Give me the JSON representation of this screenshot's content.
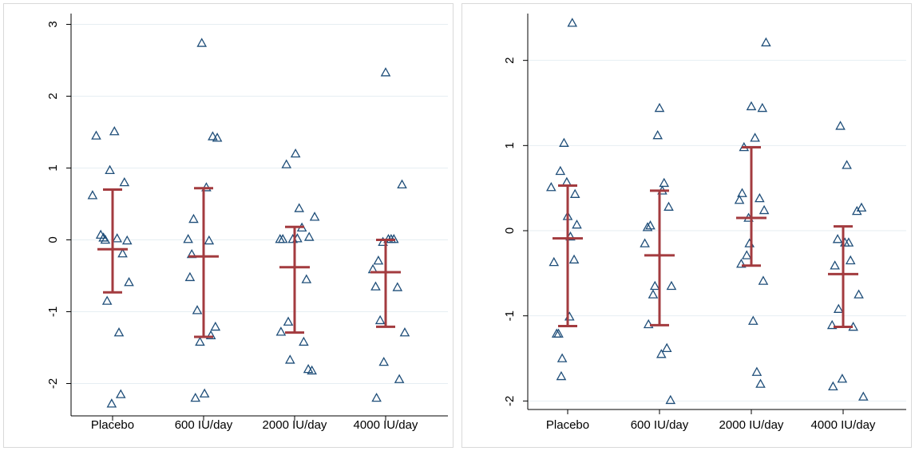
{
  "chart_data": [
    {
      "type": "scatter",
      "title": "",
      "xlabel": "",
      "ylabel": "",
      "categories": [
        "Placebo",
        "600 IU/day",
        "2000 IU/day",
        "4000 IU/day"
      ],
      "ylim": [
        -2.45,
        3.15
      ],
      "yticks": [
        -2,
        -1,
        0,
        1,
        2,
        3
      ],
      "grid": true,
      "marker": "hollow-triangle",
      "colors": {
        "points": "#1f4e79",
        "summary": "#a33b3f",
        "grid": "#e6eef2",
        "axis": "#000000"
      },
      "points": [
        {
          "group": 0,
          "x": 0.82,
          "y": 1.45
        },
        {
          "group": 0,
          "x": 1.02,
          "y": 1.51
        },
        {
          "group": 0,
          "x": 0.97,
          "y": 0.97
        },
        {
          "group": 0,
          "x": 1.13,
          "y": 0.8
        },
        {
          "group": 0,
          "x": 0.78,
          "y": 0.62
        },
        {
          "group": 0,
          "x": 0.87,
          "y": 0.07
        },
        {
          "group": 0,
          "x": 0.9,
          "y": 0.03
        },
        {
          "group": 0,
          "x": 0.92,
          "y": 0.0
        },
        {
          "group": 0,
          "x": 1.05,
          "y": 0.02
        },
        {
          "group": 0,
          "x": 1.16,
          "y": -0.01
        },
        {
          "group": 0,
          "x": 1.11,
          "y": -0.19
        },
        {
          "group": 0,
          "x": 1.18,
          "y": -0.59
        },
        {
          "group": 0,
          "x": 0.94,
          "y": -0.85
        },
        {
          "group": 0,
          "x": 1.07,
          "y": -1.29
        },
        {
          "group": 0,
          "x": 1.09,
          "y": -2.15
        },
        {
          "group": 0,
          "x": 0.99,
          "y": -2.28
        },
        {
          "group": 1,
          "x": 1.98,
          "y": 2.74
        },
        {
          "group": 1,
          "x": 2.1,
          "y": 1.44
        },
        {
          "group": 1,
          "x": 2.15,
          "y": 1.42
        },
        {
          "group": 1,
          "x": 2.03,
          "y": 0.73
        },
        {
          "group": 1,
          "x": 1.89,
          "y": 0.29
        },
        {
          "group": 1,
          "x": 1.83,
          "y": 0.01
        },
        {
          "group": 1,
          "x": 2.06,
          "y": -0.01
        },
        {
          "group": 1,
          "x": 1.87,
          "y": -0.2
        },
        {
          "group": 1,
          "x": 1.85,
          "y": -0.52
        },
        {
          "group": 1,
          "x": 1.93,
          "y": -0.98
        },
        {
          "group": 1,
          "x": 2.13,
          "y": -1.21
        },
        {
          "group": 1,
          "x": 2.08,
          "y": -1.33
        },
        {
          "group": 1,
          "x": 1.96,
          "y": -1.42
        },
        {
          "group": 1,
          "x": 2.01,
          "y": -2.14
        },
        {
          "group": 1,
          "x": 1.91,
          "y": -2.2
        },
        {
          "group": 2,
          "x": 3.01,
          "y": 1.2
        },
        {
          "group": 2,
          "x": 2.91,
          "y": 1.05
        },
        {
          "group": 2,
          "x": 3.05,
          "y": 0.44
        },
        {
          "group": 2,
          "x": 3.22,
          "y": 0.32
        },
        {
          "group": 2,
          "x": 3.08,
          "y": 0.17
        },
        {
          "group": 2,
          "x": 3.16,
          "y": 0.04
        },
        {
          "group": 2,
          "x": 2.84,
          "y": 0.01
        },
        {
          "group": 2,
          "x": 2.87,
          "y": 0.01
        },
        {
          "group": 2,
          "x": 2.98,
          "y": 0.01
        },
        {
          "group": 2,
          "x": 3.03,
          "y": 0.02
        },
        {
          "group": 2,
          "x": 3.13,
          "y": -0.55
        },
        {
          "group": 2,
          "x": 2.93,
          "y": -1.14
        },
        {
          "group": 2,
          "x": 2.85,
          "y": -1.28
        },
        {
          "group": 2,
          "x": 3.1,
          "y": -1.42
        },
        {
          "group": 2,
          "x": 2.95,
          "y": -1.67
        },
        {
          "group": 2,
          "x": 3.15,
          "y": -1.8
        },
        {
          "group": 2,
          "x": 3.19,
          "y": -1.82
        },
        {
          "group": 3,
          "x": 4.0,
          "y": 2.33
        },
        {
          "group": 3,
          "x": 4.18,
          "y": 0.77
        },
        {
          "group": 3,
          "x": 3.97,
          "y": -0.03
        },
        {
          "group": 3,
          "x": 4.03,
          "y": 0.01
        },
        {
          "group": 3,
          "x": 4.06,
          "y": 0.01
        },
        {
          "group": 3,
          "x": 4.09,
          "y": 0.01
        },
        {
          "group": 3,
          "x": 3.92,
          "y": -0.29
        },
        {
          "group": 3,
          "x": 3.86,
          "y": -0.41
        },
        {
          "group": 3,
          "x": 3.89,
          "y": -0.65
        },
        {
          "group": 3,
          "x": 4.13,
          "y": -0.66
        },
        {
          "group": 3,
          "x": 3.94,
          "y": -1.12
        },
        {
          "group": 3,
          "x": 4.21,
          "y": -1.29
        },
        {
          "group": 3,
          "x": 3.98,
          "y": -1.7
        },
        {
          "group": 3,
          "x": 4.15,
          "y": -1.94
        },
        {
          "group": 3,
          "x": 3.9,
          "y": -2.2
        }
      ],
      "summary": [
        {
          "group": 0,
          "mean": -0.13,
          "upper": 0.7,
          "lower": -0.73
        },
        {
          "group": 1,
          "mean": -0.23,
          "upper": 0.72,
          "lower": -1.35
        },
        {
          "group": 2,
          "mean": -0.38,
          "upper": 0.18,
          "lower": -1.29
        },
        {
          "group": 3,
          "mean": -0.45,
          "upper": 0.0,
          "lower": -1.21
        }
      ]
    },
    {
      "type": "scatter",
      "title": "",
      "xlabel": "",
      "ylabel": "",
      "categories": [
        "Placebo",
        "600 IU/day",
        "2000 IU/day",
        "4000 IU/day"
      ],
      "ylim": [
        -2.1,
        2.55
      ],
      "yticks": [
        -2,
        -1,
        0,
        1,
        2
      ],
      "grid": true,
      "marker": "hollow-triangle",
      "colors": {
        "points": "#1f4e79",
        "summary": "#a33b3f",
        "grid": "#e6eef2",
        "axis": "#000000"
      },
      "points": [
        {
          "group": 0,
          "x": 1.05,
          "y": 2.44
        },
        {
          "group": 0,
          "x": 0.96,
          "y": 1.03
        },
        {
          "group": 0,
          "x": 0.92,
          "y": 0.7
        },
        {
          "group": 0,
          "x": 0.99,
          "y": 0.57
        },
        {
          "group": 0,
          "x": 0.82,
          "y": 0.51
        },
        {
          "group": 0,
          "x": 1.08,
          "y": 0.43
        },
        {
          "group": 0,
          "x": 1.0,
          "y": 0.17
        },
        {
          "group": 0,
          "x": 1.1,
          "y": 0.07
        },
        {
          "group": 0,
          "x": 1.03,
          "y": -0.07
        },
        {
          "group": 0,
          "x": 1.07,
          "y": -0.34
        },
        {
          "group": 0,
          "x": 0.85,
          "y": -0.37
        },
        {
          "group": 0,
          "x": 1.02,
          "y": -1.01
        },
        {
          "group": 0,
          "x": 0.88,
          "y": -1.21
        },
        {
          "group": 0,
          "x": 0.9,
          "y": -1.21
        },
        {
          "group": 0,
          "x": 0.94,
          "y": -1.5
        },
        {
          "group": 0,
          "x": 0.93,
          "y": -1.71
        },
        {
          "group": 1,
          "x": 2.0,
          "y": 1.44
        },
        {
          "group": 1,
          "x": 1.98,
          "y": 1.12
        },
        {
          "group": 1,
          "x": 2.05,
          "y": 0.56
        },
        {
          "group": 1,
          "x": 2.03,
          "y": 0.47
        },
        {
          "group": 1,
          "x": 2.1,
          "y": 0.28
        },
        {
          "group": 1,
          "x": 1.9,
          "y": 0.06
        },
        {
          "group": 1,
          "x": 1.87,
          "y": 0.04
        },
        {
          "group": 1,
          "x": 1.84,
          "y": -0.15
        },
        {
          "group": 1,
          "x": 1.95,
          "y": -0.65
        },
        {
          "group": 1,
          "x": 2.13,
          "y": -0.65
        },
        {
          "group": 1,
          "x": 1.93,
          "y": -0.75
        },
        {
          "group": 1,
          "x": 1.88,
          "y": -1.1
        },
        {
          "group": 1,
          "x": 2.08,
          "y": -1.38
        },
        {
          "group": 1,
          "x": 2.02,
          "y": -1.45
        },
        {
          "group": 1,
          "x": 2.12,
          "y": -1.99
        },
        {
          "group": 2,
          "x": 3.16,
          "y": 2.21
        },
        {
          "group": 2,
          "x": 3.0,
          "y": 1.46
        },
        {
          "group": 2,
          "x": 3.12,
          "y": 1.44
        },
        {
          "group": 2,
          "x": 3.04,
          "y": 1.09
        },
        {
          "group": 2,
          "x": 2.92,
          "y": 0.98
        },
        {
          "group": 2,
          "x": 2.9,
          "y": 0.44
        },
        {
          "group": 2,
          "x": 2.87,
          "y": 0.36
        },
        {
          "group": 2,
          "x": 3.09,
          "y": 0.38
        },
        {
          "group": 2,
          "x": 3.14,
          "y": 0.24
        },
        {
          "group": 2,
          "x": 2.97,
          "y": 0.15
        },
        {
          "group": 2,
          "x": 2.98,
          "y": -0.15
        },
        {
          "group": 2,
          "x": 2.95,
          "y": -0.29
        },
        {
          "group": 2,
          "x": 2.89,
          "y": -0.39
        },
        {
          "group": 2,
          "x": 3.13,
          "y": -0.59
        },
        {
          "group": 2,
          "x": 3.02,
          "y": -1.06
        },
        {
          "group": 2,
          "x": 3.06,
          "y": -1.66
        },
        {
          "group": 2,
          "x": 3.1,
          "y": -1.8
        },
        {
          "group": 3,
          "x": 3.97,
          "y": 1.23
        },
        {
          "group": 3,
          "x": 4.04,
          "y": 0.77
        },
        {
          "group": 3,
          "x": 4.2,
          "y": 0.27
        },
        {
          "group": 3,
          "x": 4.15,
          "y": 0.23
        },
        {
          "group": 3,
          "x": 3.94,
          "y": -0.1
        },
        {
          "group": 3,
          "x": 4.02,
          "y": -0.14
        },
        {
          "group": 3,
          "x": 4.06,
          "y": -0.14
        },
        {
          "group": 3,
          "x": 4.08,
          "y": -0.35
        },
        {
          "group": 3,
          "x": 3.91,
          "y": -0.41
        },
        {
          "group": 3,
          "x": 4.17,
          "y": -0.75
        },
        {
          "group": 3,
          "x": 3.95,
          "y": -0.92
        },
        {
          "group": 3,
          "x": 3.88,
          "y": -1.11
        },
        {
          "group": 3,
          "x": 4.11,
          "y": -1.13
        },
        {
          "group": 3,
          "x": 3.99,
          "y": -1.74
        },
        {
          "group": 3,
          "x": 3.89,
          "y": -1.83
        },
        {
          "group": 3,
          "x": 4.22,
          "y": -1.95
        }
      ],
      "summary": [
        {
          "group": 0,
          "mean": -0.09,
          "upper": 0.53,
          "lower": -1.12
        },
        {
          "group": 1,
          "mean": -0.29,
          "upper": 0.47,
          "lower": -1.11
        },
        {
          "group": 2,
          "mean": 0.15,
          "upper": 0.98,
          "lower": -0.41
        },
        {
          "group": 3,
          "mean": -0.51,
          "upper": 0.05,
          "lower": -1.13
        }
      ]
    }
  ]
}
